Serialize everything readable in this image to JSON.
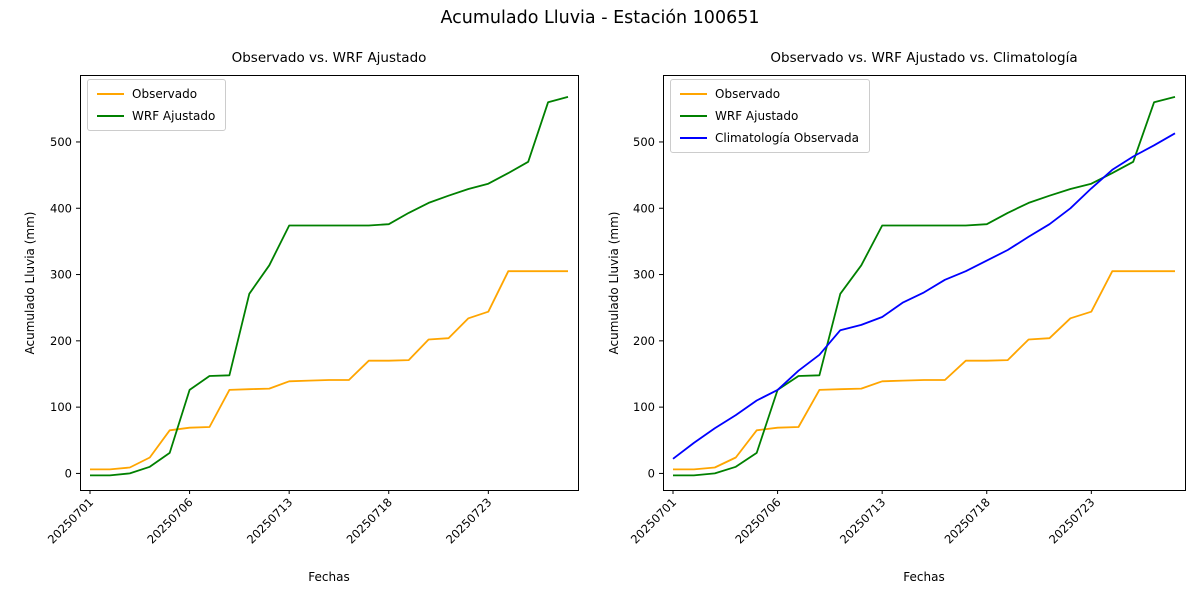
{
  "figure": {
    "suptitle": "Acumulado Lluvia - Estación 100651",
    "background": "#ffffff"
  },
  "chart_data": [
    {
      "type": "line",
      "title": "Observado vs. WRF Ajustado",
      "xlabel": "Fechas",
      "ylabel": "Acumulado Lluvia (mm)",
      "x_tick_labels": [
        "20250701",
        "20250706",
        "20250713",
        "20250718",
        "20250723"
      ],
      "x_tick_positions": [
        0,
        5,
        10,
        15,
        20
      ],
      "x_tick_rotation_deg": 45,
      "n_points": 25,
      "y_ticks": [
        0,
        100,
        200,
        300,
        400,
        500
      ],
      "ylim": [
        -25,
        601
      ],
      "grid": false,
      "legend_position": "upper left",
      "series": [
        {
          "name": "Observado",
          "color": "#FFA500",
          "values": [
            6,
            6,
            9,
            24,
            65,
            69,
            70,
            126,
            127,
            128,
            139,
            140,
            141,
            141,
            170,
            170,
            171,
            202,
            204,
            234,
            244,
            305,
            305,
            305,
            305
          ]
        },
        {
          "name": "WRF Ajustado",
          "color": "#008000",
          "values": [
            -3,
            -3,
            0,
            10,
            31,
            126,
            147,
            148,
            271,
            314,
            374,
            374,
            374,
            374,
            374,
            376,
            393,
            408,
            419,
            429,
            437,
            453,
            470,
            560,
            568
          ]
        }
      ]
    },
    {
      "type": "line",
      "title": "Observado vs. WRF Ajustado vs. Climatología",
      "xlabel": "Fechas",
      "ylabel": "Acumulado Lluvia (mm)",
      "x_tick_labels": [
        "20250701",
        "20250706",
        "20250713",
        "20250718",
        "20250723"
      ],
      "x_tick_positions": [
        0,
        5,
        10,
        15,
        20
      ],
      "x_tick_rotation_deg": 45,
      "n_points": 25,
      "y_ticks": [
        0,
        100,
        200,
        300,
        400,
        500
      ],
      "ylim": [
        -25,
        601
      ],
      "grid": false,
      "legend_position": "upper left",
      "series": [
        {
          "name": "Observado",
          "color": "#FFA500",
          "values": [
            6,
            6,
            9,
            24,
            65,
            69,
            70,
            126,
            127,
            128,
            139,
            140,
            141,
            141,
            170,
            170,
            171,
            202,
            204,
            234,
            244,
            305,
            305,
            305,
            305
          ]
        },
        {
          "name": "WRF Ajustado",
          "color": "#008000",
          "values": [
            -3,
            -3,
            0,
            10,
            31,
            126,
            147,
            148,
            271,
            314,
            374,
            374,
            374,
            374,
            374,
            376,
            393,
            408,
            419,
            429,
            437,
            453,
            470,
            560,
            568
          ]
        },
        {
          "name": "Climatología Observada",
          "color": "#0000FF",
          "values": [
            22,
            46,
            68,
            88,
            110,
            126,
            155,
            179,
            216,
            224,
            236,
            258,
            273,
            292,
            305,
            321,
            337,
            357,
            376,
            400,
            430,
            458,
            478,
            495,
            513
          ]
        }
      ]
    }
  ]
}
